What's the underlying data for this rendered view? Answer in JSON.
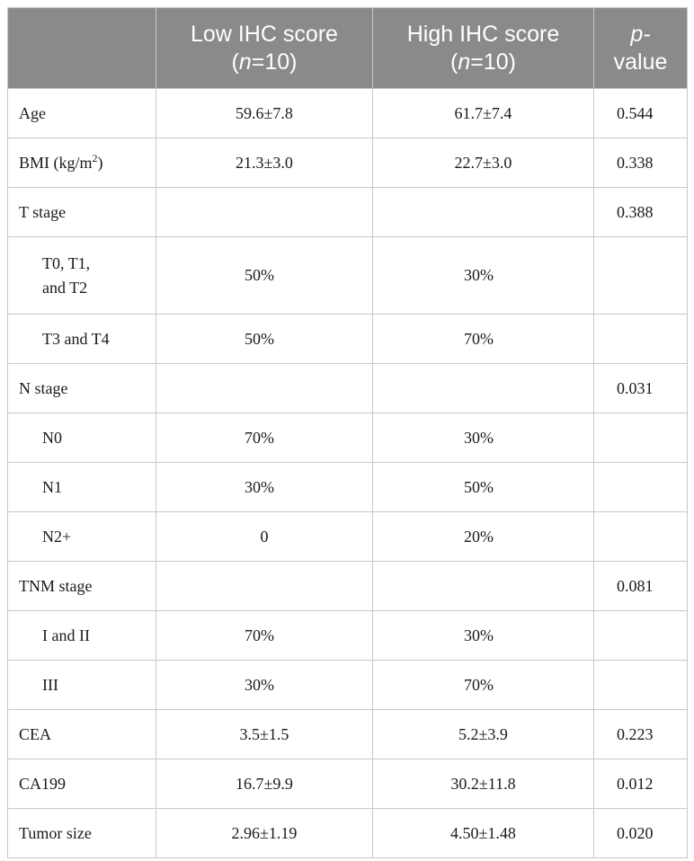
{
  "header": {
    "col0": "",
    "low_title": "Low IHC score",
    "n_italic": "n",
    "low_n_value": "=10",
    "high_title": "High IHC score",
    "high_n_value": "=10",
    "p_italic": "p-",
    "p_rest": "value"
  },
  "bmi_label": {
    "base": "BMI (kg/m",
    "sup": "2",
    "close": ")"
  },
  "rows": [
    {
      "label": "Age",
      "low": "59.6±7.8",
      "high": "61.7±7.4",
      "p": "0.544"
    },
    {
      "label": "BMI (kg/m2)",
      "low": "21.3±3.0",
      "high": "22.7±3.0",
      "p": "0.338"
    },
    {
      "label": "T stage",
      "low": "",
      "high": "",
      "p": "0.388"
    },
    {
      "label_line1": "T0, T1,",
      "label_line2": "and T2",
      "low": "50%",
      "high": "30%",
      "p": ""
    },
    {
      "label": "T3 and T4",
      "low": "50%",
      "high": "70%",
      "p": ""
    },
    {
      "label": "N stage",
      "low": "",
      "high": "",
      "p": "0.031"
    },
    {
      "label": "N0",
      "low": "70%",
      "high": "30%",
      "p": ""
    },
    {
      "label": "N1",
      "low": "30%",
      "high": "50%",
      "p": ""
    },
    {
      "label": "N2+",
      "low": "0",
      "high": "20%",
      "p": ""
    },
    {
      "label": "TNM stage",
      "low": "",
      "high": "",
      "p": "0.081"
    },
    {
      "label": "I and II",
      "low": "70%",
      "high": "30%",
      "p": ""
    },
    {
      "label": "III",
      "low": "30%",
      "high": "70%",
      "p": ""
    },
    {
      "label": "CEA",
      "low": "3.5±1.5",
      "high": "5.2±3.9",
      "p": "0.223"
    },
    {
      "label": "CA199",
      "low": "16.7±9.9",
      "high": "30.2±11.8",
      "p": "0.012"
    },
    {
      "label": "Tumor size",
      "low": "2.96±1.19",
      "high": "4.50±1.48",
      "p": "0.020"
    }
  ],
  "colors": {
    "header_bg": "#8a8a8a",
    "header_text": "#ffffff",
    "border": "#c8c8c8",
    "body_text": "#1a1a1a"
  }
}
